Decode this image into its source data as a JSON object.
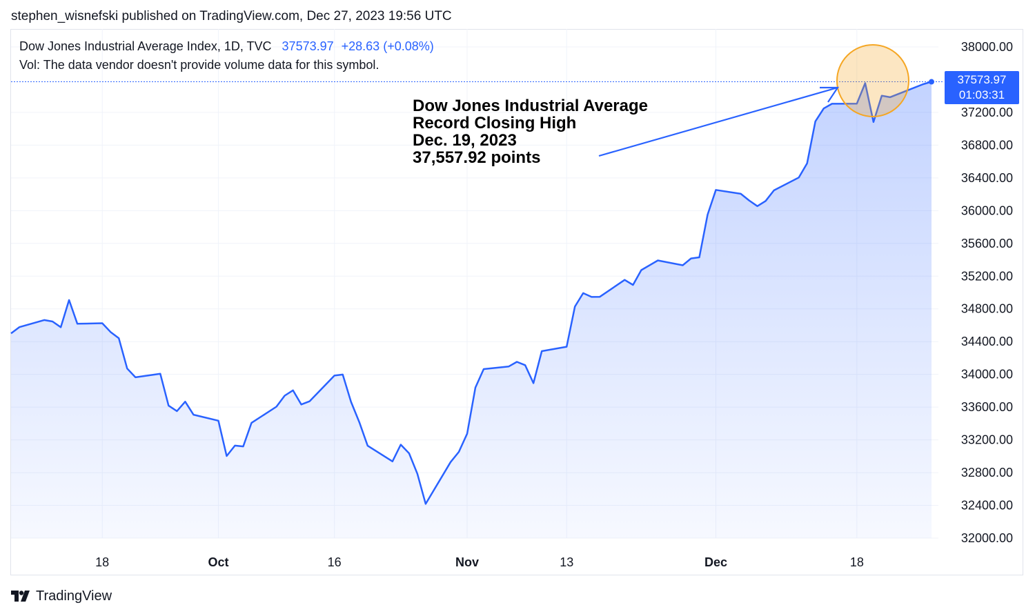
{
  "header": {
    "published": "stephen_wisnefski published on TradingView.com, Dec 27, 2023 19:56 UTC"
  },
  "legend": {
    "symbol": "Dow Jones Industrial Average Index, 1D, TVC",
    "price": "37573.97",
    "change": "+28.63 (+0.08%)",
    "volume_note": "Vol: The data vendor doesn't provide volume data for this symbol."
  },
  "annotation": {
    "lines": [
      "Dow Jones Industrial Average",
      "Record Closing High",
      "Dec. 19, 2023",
      "37,557.92 points"
    ]
  },
  "price_badge": {
    "price": "37573.97",
    "countdown": "01:03:31"
  },
  "footer": {
    "brand": "TradingView"
  },
  "colors": {
    "line": "#2962ff",
    "highlight_circle": "#f5a623",
    "badge": "#2962ff"
  },
  "chart_data": {
    "type": "area",
    "title": "",
    "xlabel": "",
    "ylabel": "",
    "ylim": [
      32000,
      38000
    ],
    "y_ticks": [
      "38000.00",
      "37200.00",
      "36800.00",
      "36400.00",
      "36000.00",
      "35600.00",
      "35200.00",
      "34800.00",
      "34400.00",
      "34000.00",
      "33600.00",
      "33200.00",
      "32800.00",
      "32400.00",
      "32000.00"
    ],
    "x_ticks": [
      {
        "label": "18",
        "date": "2023-09-18",
        "bold": false
      },
      {
        "label": "Oct",
        "date": "2023-10-02",
        "bold": true
      },
      {
        "label": "16",
        "date": "2023-10-16",
        "bold": false
      },
      {
        "label": "Nov",
        "date": "2023-11-01",
        "bold": true
      },
      {
        "label": "13",
        "date": "2023-11-13",
        "bold": false
      },
      {
        "label": "Dec",
        "date": "2023-12-01",
        "bold": true
      },
      {
        "label": "18",
        "date": "2023-12-18",
        "bold": false
      }
    ],
    "series": [
      {
        "x": [
          "2023-09-07",
          "2023-09-08",
          "2023-09-11",
          "2023-09-12",
          "2023-09-13",
          "2023-09-14",
          "2023-09-15",
          "2023-09-18",
          "2023-09-19",
          "2023-09-20",
          "2023-09-21",
          "2023-09-22",
          "2023-09-25",
          "2023-09-26",
          "2023-09-27",
          "2023-09-28",
          "2023-09-29",
          "2023-10-02",
          "2023-10-03",
          "2023-10-04",
          "2023-10-05",
          "2023-10-06",
          "2023-10-09",
          "2023-10-10",
          "2023-10-11",
          "2023-10-12",
          "2023-10-13",
          "2023-10-16",
          "2023-10-17",
          "2023-10-18",
          "2023-10-19",
          "2023-10-20",
          "2023-10-23",
          "2023-10-24",
          "2023-10-25",
          "2023-10-26",
          "2023-10-27",
          "2023-10-30",
          "2023-10-31",
          "2023-11-01",
          "2023-11-02",
          "2023-11-03",
          "2023-11-06",
          "2023-11-07",
          "2023-11-08",
          "2023-11-09",
          "2023-11-10",
          "2023-11-13",
          "2023-11-14",
          "2023-11-15",
          "2023-11-16",
          "2023-11-17",
          "2023-11-20",
          "2023-11-21",
          "2023-11-22",
          "2023-11-24",
          "2023-11-27",
          "2023-11-28",
          "2023-11-29",
          "2023-11-30",
          "2023-12-01",
          "2023-12-04",
          "2023-12-05",
          "2023-12-06",
          "2023-12-07",
          "2023-12-08",
          "2023-12-11",
          "2023-12-12",
          "2023-12-13",
          "2023-12-14",
          "2023-12-15",
          "2023-12-18",
          "2023-12-19",
          "2023-12-20",
          "2023-12-21",
          "2023-12-22",
          "2023-12-26",
          "2023-12-27"
        ],
        "values": [
          34500,
          34577,
          34664,
          34646,
          34576,
          34908,
          34618,
          34625,
          34518,
          34441,
          34071,
          33964,
          34007,
          33619,
          33551,
          33667,
          33508,
          33434,
          33003,
          33130,
          33120,
          33408,
          33605,
          33740,
          33805,
          33632,
          33671,
          33985,
          33998,
          33665,
          33415,
          33128,
          32937,
          33142,
          33036,
          32785,
          32418,
          32929,
          33053,
          33275,
          33840,
          34065,
          34096,
          34153,
          34113,
          33893,
          34284,
          34338,
          34828,
          34992,
          34946,
          34948,
          35154,
          35093,
          35274,
          35392,
          35333,
          35416,
          35430,
          35951,
          36253,
          36206,
          36125,
          36055,
          36118,
          36248,
          36405,
          36578,
          37091,
          37248,
          37306,
          37307,
          37558,
          37082,
          37404,
          37386,
          37545,
          37574
        ]
      }
    ]
  }
}
